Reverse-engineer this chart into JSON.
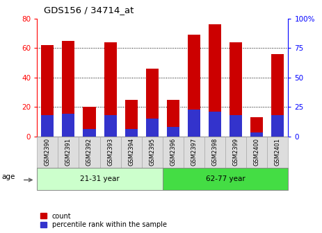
{
  "title": "GDS156 / 34714_at",
  "samples": [
    "GSM2390",
    "GSM2391",
    "GSM2392",
    "GSM2393",
    "GSM2394",
    "GSM2395",
    "GSM2396",
    "GSM2397",
    "GSM2398",
    "GSM2399",
    "GSM2400",
    "GSM2401"
  ],
  "count_values": [
    62,
    65,
    20,
    64,
    25,
    46,
    25,
    69,
    76,
    64,
    13,
    56
  ],
  "percentile_values": [
    18,
    19,
    6,
    18,
    6,
    15,
    8,
    23,
    21,
    18,
    3,
    18
  ],
  "group1_label": "21-31 year",
  "group2_label": "62-77 year",
  "age_label": "age",
  "left_ylim": [
    0,
    80
  ],
  "right_ylim": [
    0,
    100
  ],
  "left_yticks": [
    0,
    20,
    40,
    60,
    80
  ],
  "right_yticks": [
    0,
    25,
    50,
    75,
    100
  ],
  "right_yticklabels": [
    "0",
    "25",
    "50",
    "75",
    "100%"
  ],
  "bar_color_red": "#cc0000",
  "bar_color_blue": "#3333cc",
  "group1_bg": "#ccffcc",
  "group2_bg": "#44dd44",
  "tick_bg": "#dddddd",
  "bar_width": 0.6,
  "legend_count_label": "count",
  "legend_pct_label": "percentile rank within the sample",
  "grid_color": "black",
  "grid_lines": [
    20,
    40,
    60
  ]
}
